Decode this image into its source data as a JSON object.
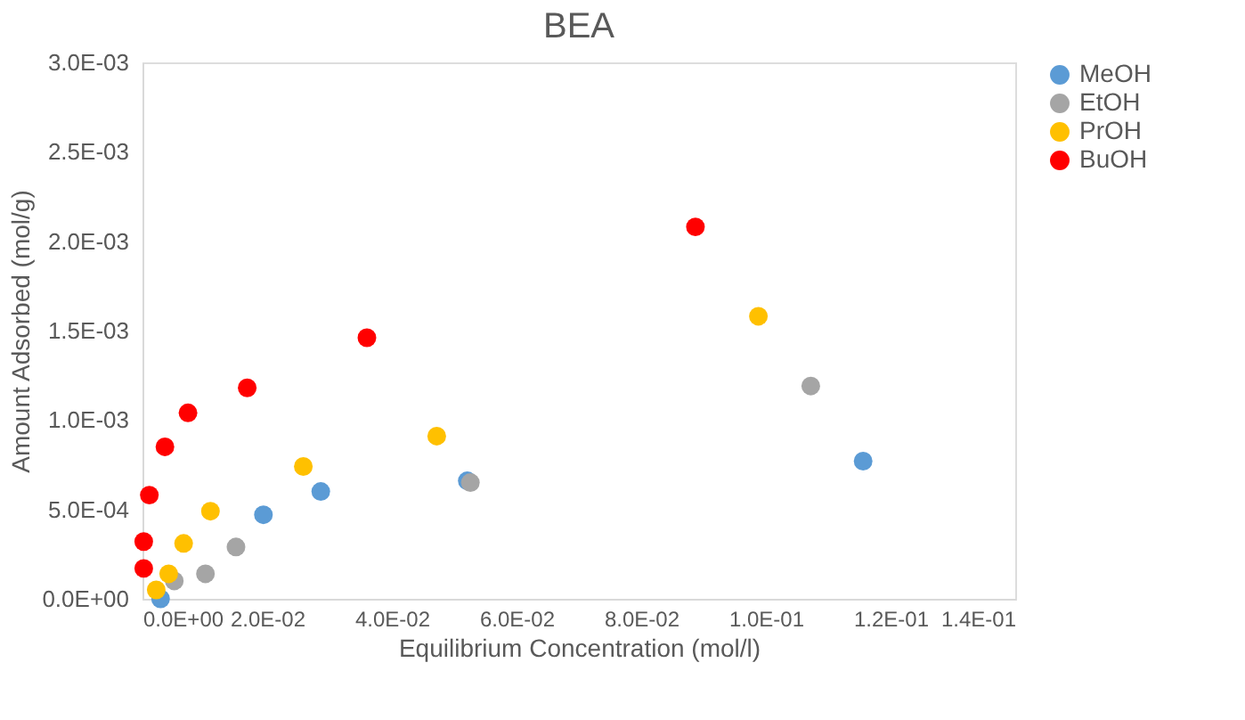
{
  "chart_data": {
    "type": "scatter",
    "title": "BEA",
    "xlabel": "Equilibrium Concentration (mol/l)",
    "ylabel": "Amount Adsorbed (mol/g)",
    "marker": "circle",
    "grid": false,
    "legend": "right",
    "xlim": [
      0,
      0.14
    ],
    "ylim": [
      0,
      0.003
    ],
    "xticks": [
      {
        "value": 0,
        "label": "0.0E+00"
      },
      {
        "value": 0.02,
        "label": "2.0E-02"
      },
      {
        "value": 0.04,
        "label": "4.0E-02"
      },
      {
        "value": 0.06,
        "label": "6.0E-02"
      },
      {
        "value": 0.08,
        "label": "8.0E-02"
      },
      {
        "value": 0.1,
        "label": "1.0E-01"
      },
      {
        "value": 0.12,
        "label": "1.2E-01"
      },
      {
        "value": 0.14,
        "label": "1.4E-01"
      }
    ],
    "yticks": [
      {
        "value": 0,
        "label": "0.0E+00"
      },
      {
        "value": 0.0005,
        "label": "5.0E-04"
      },
      {
        "value": 0.001,
        "label": "1.0E-03"
      },
      {
        "value": 0.0015,
        "label": "1.5E-03"
      },
      {
        "value": 0.002,
        "label": "2.0E-03"
      },
      {
        "value": 0.0025,
        "label": "2.5E-03"
      },
      {
        "value": 0.003,
        "label": "3.0E-03"
      }
    ],
    "series": [
      {
        "name": "MeOH",
        "color": "#5b9bd5",
        "x": [
          0.0029,
          0.0194,
          0.0286,
          0.0521,
          0.1156
        ],
        "values": [
          0.0,
          0.00047,
          0.0006,
          0.00066,
          0.00077
        ]
      },
      {
        "name": "EtOH",
        "color": "#a5a5a5",
        "x": [
          0.0051,
          0.0101,
          0.015,
          0.0526,
          0.1072
        ],
        "values": [
          0.0001,
          0.00014,
          0.00029,
          0.00065,
          0.00119
        ]
      },
      {
        "name": "PrOH",
        "color": "#ffc000",
        "x": [
          0.0022,
          0.0042,
          0.0066,
          0.0109,
          0.0258,
          0.0472,
          0.0988
        ],
        "values": [
          5e-05,
          0.00014,
          0.00031,
          0.00049,
          0.00074,
          0.00091,
          0.00158
        ]
      },
      {
        "name": "BuOH",
        "color": "#ff0000",
        "x": [
          0.0002,
          0.0002,
          0.0011,
          0.0036,
          0.0073,
          0.0168,
          0.036,
          0.0887
        ],
        "values": [
          0.00017,
          0.00032,
          0.00058,
          0.00085,
          0.00104,
          0.00118,
          0.00146,
          0.00208
        ]
      }
    ]
  }
}
